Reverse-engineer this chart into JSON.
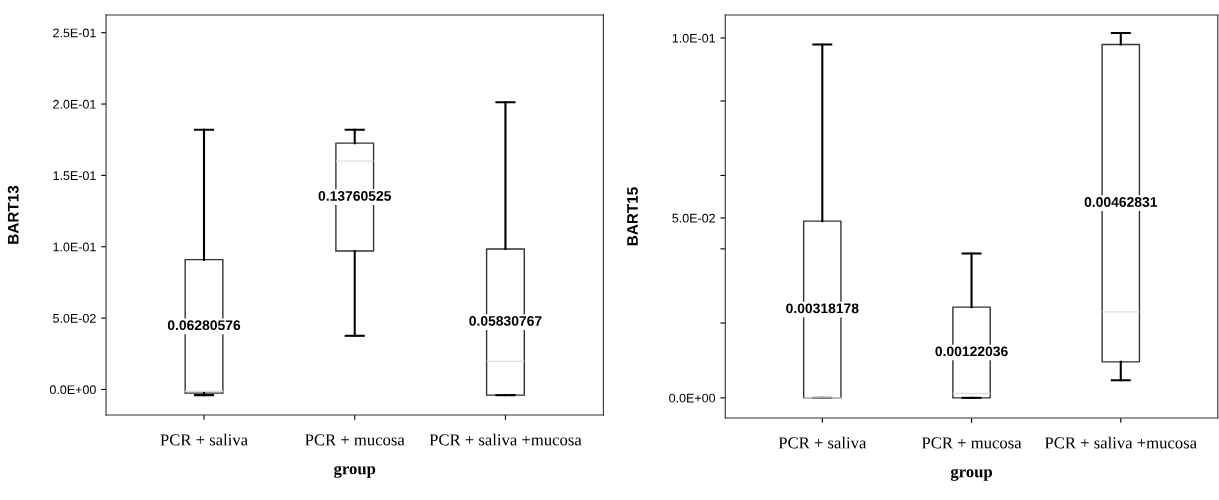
{
  "chart_data": [
    {
      "type": "box",
      "xlabel": "group",
      "ylabel": "BART13",
      "categories": [
        "PCR + saliva",
        "PCR + mucosa",
        "PCR + saliva +mucosa"
      ],
      "boxes": [
        {
          "low": -0.004,
          "q1": -0.0026,
          "median": -0.0013,
          "q3": 0.091,
          "high": 0.182
        },
        {
          "low": 0.0376,
          "q1": 0.097,
          "median": 0.16,
          "q3": 0.1726,
          "high": 0.182
        },
        {
          "low": -0.004,
          "q1": -0.004,
          "median": 0.0197,
          "q3": 0.0984,
          "high": 0.2013
        }
      ],
      "annotations": [
        "0.06280576",
        "0.13760525",
        "0.05830767"
      ],
      "ylim": [
        -0.0179,
        0.2624
      ],
      "yticks": [
        {
          "value": 0,
          "label": "0.0E+00"
        },
        {
          "value": 0.05,
          "label": "5.0E-02"
        },
        {
          "value": 0.1,
          "label": "1.0E-01"
        },
        {
          "value": 0.15,
          "label": "1.5E-01"
        },
        {
          "value": 0.2,
          "label": "2.0E-01"
        },
        {
          "value": 0.25,
          "label": "2.5E-01"
        }
      ],
      "grid": false
    },
    {
      "type": "box",
      "xlabel": "group",
      "ylabel": "BART15",
      "categories": [
        "PCR + saliva",
        "PCR + mucosa",
        "PCR + saliva +mucosa"
      ],
      "boxes": [
        {
          "low": 0,
          "q1": 0,
          "median": 0,
          "q3": 0.0491,
          "high": 0.0982
        },
        {
          "low": 0,
          "q1": 0,
          "median": 0.0012,
          "q3": 0.0252,
          "high": 0.0401
        },
        {
          "low": 0.0049,
          "q1": 0.01,
          "median": 0.0239,
          "q3": 0.0982,
          "high": 0.1014
        }
      ],
      "annotations": [
        "0.00318178",
        "0.00122036",
        "0.00462831"
      ],
      "ylim": [
        -0.0056,
        0.1064
      ],
      "yticks": [
        {
          "value": 0,
          "label": "0.0E+00"
        },
        {
          "value": 0.0208,
          "label": null
        },
        {
          "value": 0.0414,
          "label": null
        },
        {
          "value": 0.05,
          "label": "5.0E-02"
        },
        {
          "value": 0.0618,
          "label": null
        },
        {
          "value": 0.0825,
          "label": null
        },
        {
          "value": 0.1,
          "label": "1.0E-01"
        }
      ],
      "grid": false
    }
  ]
}
